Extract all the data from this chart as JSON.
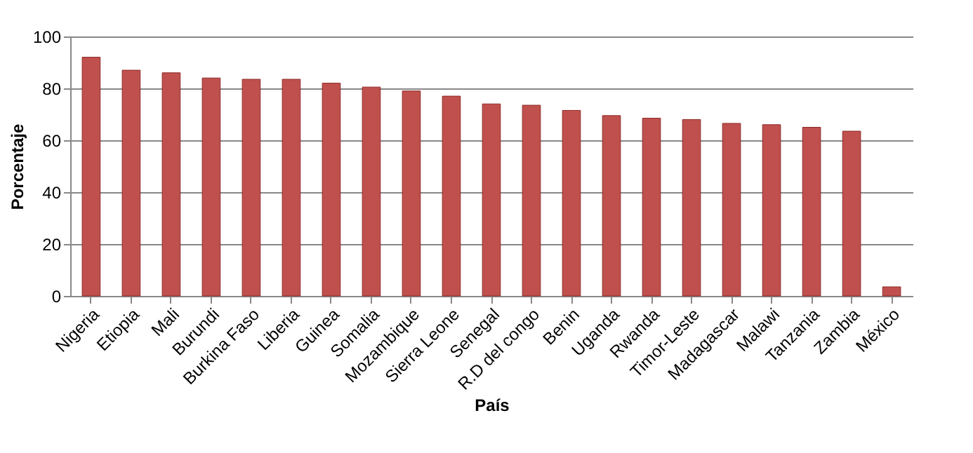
{
  "chart_data": {
    "type": "bar",
    "xlabel": "País",
    "ylabel": "Porcentaje",
    "categories": [
      "Nigeria",
      "Etiopia",
      "Mali",
      "Burundi",
      "Burkina Faso",
      "Liberia",
      "Guinea",
      "Somalia",
      "Mozambique",
      "Sierra Leone",
      "Senegal",
      "R.D del congo",
      "Benin",
      "Uganda",
      "Rwanda",
      "Timor-Leste",
      "Madagascar",
      "Malawi",
      "Tanzania",
      "Zambia",
      "México"
    ],
    "values": [
      92,
      87,
      86,
      84,
      83.5,
      83.5,
      82,
      80.5,
      79,
      77,
      74,
      73.5,
      71.5,
      69.5,
      68.5,
      68,
      66.5,
      66,
      65,
      63.5,
      3.5
    ],
    "color": "#c0504d",
    "ylim": [
      0,
      100
    ],
    "yticks": [
      0,
      20,
      40,
      60,
      80,
      100
    ],
    "grid": "y"
  }
}
